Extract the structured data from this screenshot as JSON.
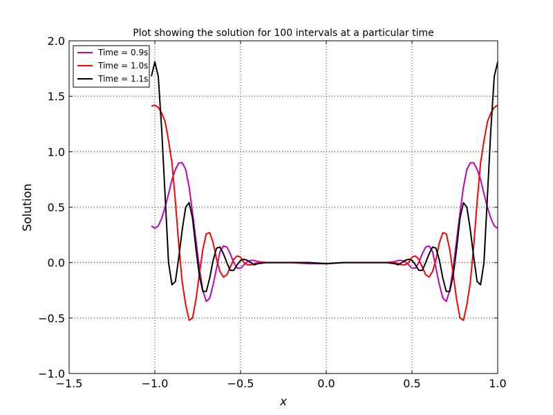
{
  "chart_data": {
    "type": "line",
    "title": "Plot showing the solution for 100 intervals at a particular time",
    "xlabel": "x",
    "ylabel": "Solution",
    "xlim": [
      -1.5,
      1.0
    ],
    "ylim": [
      -1.0,
      2.0
    ],
    "xticks": [
      -1.5,
      -1.0,
      -0.5,
      0.0,
      0.5,
      1.0
    ],
    "xtick_labels": [
      "−1.5",
      "−1.0",
      "−0.5",
      "0.0",
      "0.5",
      "1.0"
    ],
    "yticks": [
      -1.0,
      -0.5,
      0.0,
      0.5,
      1.0,
      1.5,
      2.0
    ],
    "ytick_labels": [
      "−1.0",
      "−0.5",
      "0.0",
      "0.5",
      "1.0",
      "1.5",
      "2.0"
    ],
    "grid": true,
    "legend_position": "top-left",
    "series": [
      {
        "name": "Time = 0.9s",
        "color": "#bf00bf",
        "x": [
          -1.02,
          -1.0,
          -0.98,
          -0.96,
          -0.94,
          -0.92,
          -0.9,
          -0.88,
          -0.86,
          -0.84,
          -0.82,
          -0.8,
          -0.78,
          -0.76,
          -0.74,
          -0.72,
          -0.7,
          -0.68,
          -0.66,
          -0.64,
          -0.62,
          -0.6,
          -0.58,
          -0.56,
          -0.54,
          -0.52,
          -0.5,
          -0.48,
          -0.46,
          -0.44,
          -0.42,
          -0.4,
          -0.35,
          -0.3,
          -0.2,
          -0.1,
          0.0,
          0.1,
          0.2,
          0.3,
          0.35,
          0.4,
          0.42,
          0.44,
          0.46,
          0.48,
          0.5,
          0.52,
          0.54,
          0.56,
          0.58,
          0.6,
          0.62,
          0.64,
          0.66,
          0.68,
          0.7,
          0.72,
          0.74,
          0.76,
          0.78,
          0.8,
          0.82,
          0.84,
          0.86,
          0.88,
          0.9,
          0.92,
          0.94,
          0.96,
          0.98,
          1.0
        ],
        "y": [
          0.33,
          0.31,
          0.33,
          0.4,
          0.5,
          0.62,
          0.75,
          0.84,
          0.9,
          0.9,
          0.84,
          0.68,
          0.45,
          0.2,
          -0.05,
          -0.25,
          -0.35,
          -0.32,
          -0.2,
          -0.05,
          0.1,
          0.15,
          0.14,
          0.08,
          0.0,
          -0.05,
          -0.05,
          -0.02,
          0.01,
          0.02,
          0.02,
          0.01,
          0.0,
          0.0,
          0.0,
          -0.01,
          -0.01,
          0.0,
          0.0,
          0.0,
          0.0,
          0.01,
          0.02,
          0.02,
          0.01,
          -0.02,
          -0.05,
          -0.05,
          0.0,
          0.08,
          0.14,
          0.15,
          0.1,
          -0.05,
          -0.2,
          -0.32,
          -0.35,
          -0.25,
          -0.05,
          0.2,
          0.45,
          0.68,
          0.84,
          0.9,
          0.9,
          0.84,
          0.75,
          0.62,
          0.5,
          0.4,
          0.33,
          0.31
        ]
      },
      {
        "name": "Time = 1.0s",
        "color": "#ff0000",
        "x": [
          -1.02,
          -1.0,
          -0.98,
          -0.96,
          -0.94,
          -0.92,
          -0.9,
          -0.88,
          -0.86,
          -0.84,
          -0.82,
          -0.8,
          -0.78,
          -0.76,
          -0.74,
          -0.72,
          -0.7,
          -0.68,
          -0.66,
          -0.64,
          -0.62,
          -0.6,
          -0.58,
          -0.56,
          -0.54,
          -0.52,
          -0.5,
          -0.48,
          -0.46,
          -0.44,
          -0.42,
          -0.4,
          -0.35,
          -0.3,
          -0.2,
          -0.1,
          0.0,
          0.1,
          0.2,
          0.3,
          0.35,
          0.4,
          0.42,
          0.44,
          0.46,
          0.48,
          0.5,
          0.52,
          0.54,
          0.56,
          0.58,
          0.6,
          0.62,
          0.64,
          0.66,
          0.68,
          0.7,
          0.72,
          0.74,
          0.76,
          0.78,
          0.8,
          0.82,
          0.84,
          0.86,
          0.88,
          0.9,
          0.92,
          0.94,
          0.96,
          0.98,
          1.0
        ],
        "y": [
          1.41,
          1.42,
          1.4,
          1.35,
          1.27,
          1.1,
          0.9,
          0.55,
          0.15,
          -0.18,
          -0.38,
          -0.52,
          -0.5,
          -0.33,
          -0.1,
          0.12,
          0.26,
          0.27,
          0.18,
          0.03,
          -0.08,
          -0.13,
          -0.11,
          -0.04,
          0.03,
          0.06,
          0.05,
          0.0,
          -0.02,
          -0.02,
          -0.01,
          0.0,
          0.0,
          0.0,
          0.0,
          0.0,
          -0.01,
          0.0,
          0.0,
          0.0,
          0.0,
          0.0,
          -0.01,
          -0.02,
          -0.02,
          0.0,
          0.05,
          0.06,
          0.03,
          -0.04,
          -0.11,
          -0.13,
          -0.08,
          0.03,
          0.18,
          0.27,
          0.26,
          0.12,
          -0.1,
          -0.33,
          -0.5,
          -0.52,
          -0.38,
          -0.18,
          0.15,
          0.55,
          0.9,
          1.1,
          1.27,
          1.35,
          1.4,
          1.42
        ]
      },
      {
        "name": "Time = 1.1s",
        "color": "#000000",
        "x": [
          -1.02,
          -1.0,
          -0.98,
          -0.96,
          -0.94,
          -0.92,
          -0.9,
          -0.88,
          -0.86,
          -0.84,
          -0.82,
          -0.8,
          -0.78,
          -0.76,
          -0.74,
          -0.72,
          -0.7,
          -0.68,
          -0.66,
          -0.64,
          -0.62,
          -0.6,
          -0.58,
          -0.56,
          -0.54,
          -0.52,
          -0.5,
          -0.48,
          -0.46,
          -0.44,
          -0.42,
          -0.4,
          -0.35,
          -0.3,
          -0.2,
          -0.1,
          0.0,
          0.1,
          0.2,
          0.3,
          0.35,
          0.4,
          0.42,
          0.44,
          0.46,
          0.48,
          0.5,
          0.52,
          0.54,
          0.56,
          0.58,
          0.6,
          0.62,
          0.64,
          0.66,
          0.68,
          0.7,
          0.72,
          0.74,
          0.76,
          0.78,
          0.8,
          0.82,
          0.84,
          0.86,
          0.88,
          0.9,
          0.92,
          0.94,
          0.96,
          0.98,
          1.0
        ],
        "y": [
          1.68,
          1.81,
          1.68,
          1.2,
          0.6,
          0.0,
          -0.2,
          -0.17,
          0.05,
          0.3,
          0.5,
          0.54,
          0.4,
          0.12,
          -0.12,
          -0.26,
          -0.26,
          -0.14,
          0.02,
          0.13,
          0.14,
          0.08,
          0.0,
          -0.07,
          -0.07,
          -0.02,
          0.02,
          0.03,
          0.02,
          0.0,
          -0.02,
          -0.01,
          0.0,
          0.0,
          0.0,
          0.0,
          -0.01,
          0.0,
          0.0,
          0.0,
          0.0,
          -0.01,
          -0.02,
          0.0,
          0.02,
          0.03,
          0.02,
          -0.02,
          -0.07,
          -0.07,
          0.0,
          0.08,
          0.14,
          0.13,
          0.02,
          -0.14,
          -0.26,
          -0.26,
          -0.12,
          0.12,
          0.4,
          0.54,
          0.5,
          0.3,
          0.05,
          -0.17,
          -0.2,
          0.0,
          0.6,
          1.2,
          1.68,
          1.81
        ]
      }
    ]
  }
}
